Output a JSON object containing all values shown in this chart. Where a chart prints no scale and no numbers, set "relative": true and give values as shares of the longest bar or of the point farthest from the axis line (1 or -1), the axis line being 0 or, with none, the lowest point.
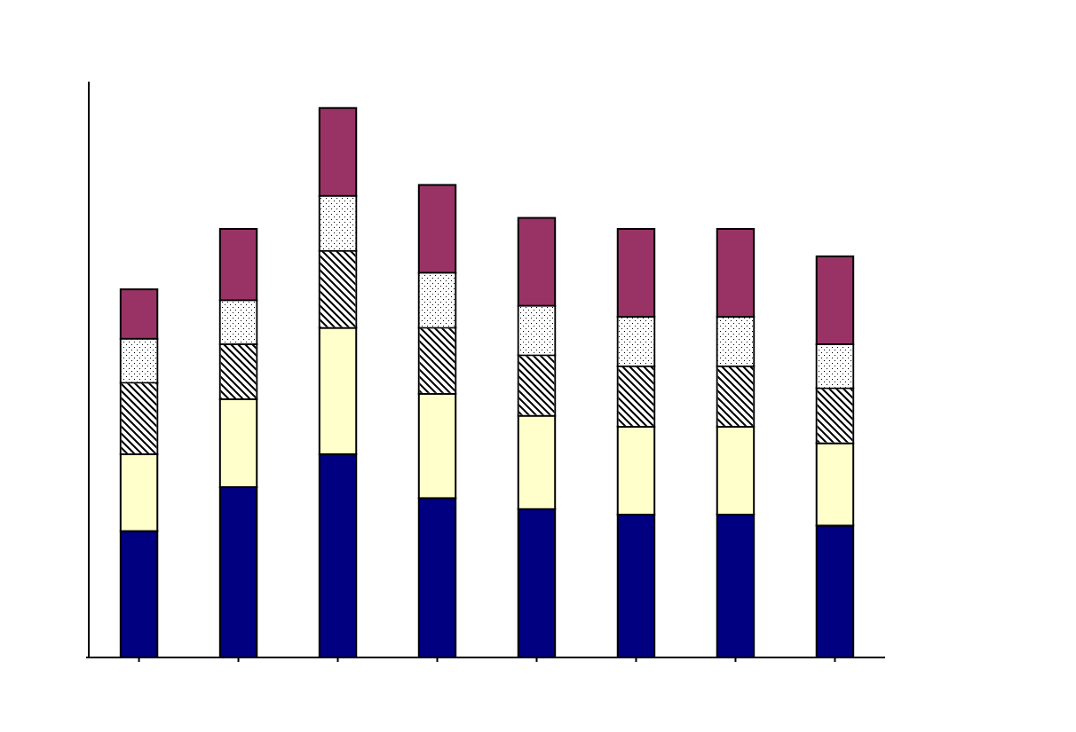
{
  "chart_data": {
    "type": "bar",
    "relative": true,
    "stacked": true,
    "categories": [
      null,
      null,
      null,
      null,
      null,
      null,
      null,
      null
    ],
    "series": [
      {
        "color": "#000080",
        "values": [
          0.23,
          0.31,
          0.37,
          0.29,
          0.27,
          0.26,
          0.26,
          0.24
        ]
      },
      {
        "color": "#ffffcc",
        "values": [
          0.14,
          0.16,
          0.23,
          0.19,
          0.17,
          0.16,
          0.16,
          0.15
        ]
      },
      {
        "color": "#ffffff",
        "values": [
          0.13,
          0.1,
          0.14,
          0.12,
          0.11,
          0.11,
          0.11,
          0.1
        ]
      },
      {
        "color": "#ffffff",
        "values": [
          0.08,
          0.08,
          0.1,
          0.1,
          0.09,
          0.09,
          0.09,
          0.08
        ]
      },
      {
        "color": "#993366",
        "values": [
          0.09,
          0.13,
          0.16,
          0.16,
          0.16,
          0.16,
          0.16,
          0.16
        ]
      }
    ]
  }
}
